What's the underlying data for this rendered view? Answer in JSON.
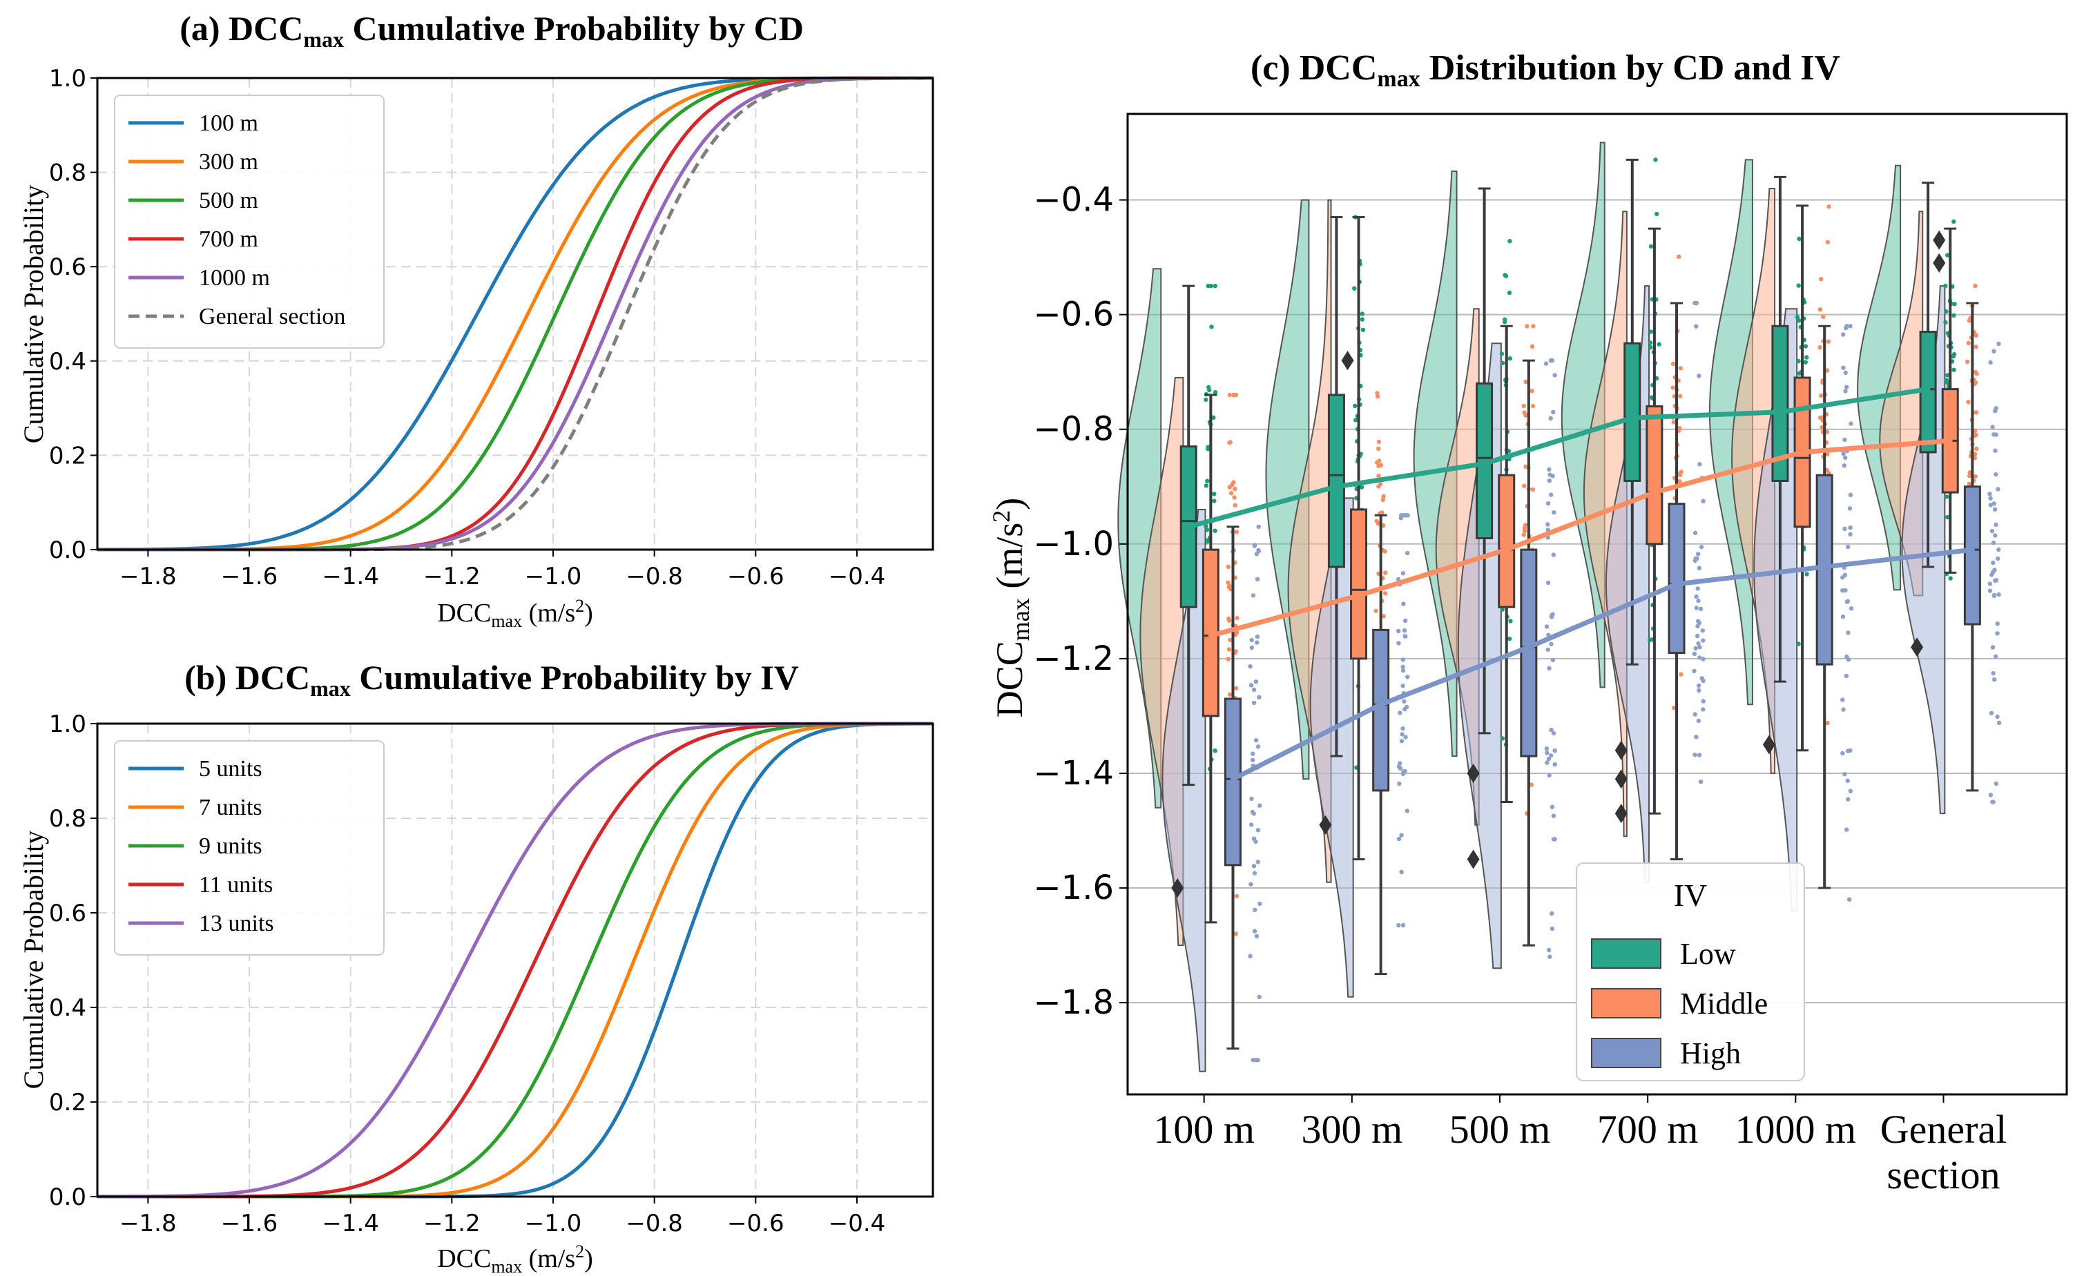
{
  "chart_data": [
    {
      "id": "a",
      "type": "line",
      "title": {
        "prefix": "(a) DCC",
        "sub": "max",
        "suffix": " Cumulative Probability by CD"
      },
      "xlabel": {
        "main": "DCC",
        "sub": "max",
        "unit": " (m/s",
        "sup": "2",
        "close": ")"
      },
      "ylabel": "Cumulative Probability",
      "xlim": [
        -1.9,
        -0.25
      ],
      "ylim": [
        0,
        1
      ],
      "xticks": [
        -1.8,
        -1.6,
        -1.4,
        -1.2,
        -1.0,
        -0.8,
        -0.6,
        -0.4
      ],
      "xtick_labels": [
        "−1.8",
        "−1.6",
        "−1.4",
        "−1.2",
        "−1.0",
        "−0.8",
        "−0.6",
        "−0.4"
      ],
      "yticks": [
        0,
        0.2,
        0.4,
        0.6,
        0.8,
        1.0
      ],
      "ytick_labels": [
        "0.0",
        "0.2",
        "0.4",
        "0.6",
        "0.8",
        "1.0"
      ],
      "grid": true,
      "legend_position": "top-left",
      "series": [
        {
          "name": "100 m",
          "color": "#1f77b4",
          "dash": false,
          "mu": -1.15,
          "sigma": 0.2
        },
        {
          "name": "300 m",
          "color": "#ff7f0e",
          "dash": false,
          "mu": -1.05,
          "sigma": 0.185
        },
        {
          "name": "500 m",
          "color": "#2ca02c",
          "dash": false,
          "mu": -0.995,
          "sigma": 0.17
        },
        {
          "name": "700 m",
          "color": "#d62728",
          "dash": false,
          "mu": -0.915,
          "sigma": 0.15
        },
        {
          "name": "1000 m",
          "color": "#9467bd",
          "dash": false,
          "mu": -0.88,
          "sigma": 0.16
        },
        {
          "name": "General section",
          "color": "#7f7f7f",
          "dash": true,
          "mu": -0.855,
          "sigma": 0.155
        }
      ]
    },
    {
      "id": "b",
      "type": "line",
      "title": {
        "prefix": "(b) DCC",
        "sub": "max",
        "suffix": " Cumulative Probability by IV"
      },
      "xlabel": {
        "main": "DCC",
        "sub": "max",
        "unit": " (m/s",
        "sup": "2",
        "close": ")"
      },
      "ylabel": "Cumulative Probability",
      "xlim": [
        -1.9,
        -0.25
      ],
      "ylim": [
        0,
        1
      ],
      "xticks": [
        -1.8,
        -1.6,
        -1.4,
        -1.2,
        -1.0,
        -0.8,
        -0.6,
        -0.4
      ],
      "xtick_labels": [
        "−1.8",
        "−1.6",
        "−1.4",
        "−1.2",
        "−1.0",
        "−0.8",
        "−0.6",
        "−0.4"
      ],
      "yticks": [
        0,
        0.2,
        0.4,
        0.6,
        0.8,
        1.0
      ],
      "ytick_labels": [
        "0.0",
        "0.2",
        "0.4",
        "0.6",
        "0.8",
        "1.0"
      ],
      "grid": true,
      "legend_position": "top-left",
      "series": [
        {
          "name": "5 units",
          "color": "#1f77b4",
          "dash": false,
          "mu": -0.75,
          "sigma": 0.13
        },
        {
          "name": "7 units",
          "color": "#ff7f0e",
          "dash": false,
          "mu": -0.84,
          "sigma": 0.15
        },
        {
          "name": "9 units",
          "color": "#2ca02c",
          "dash": false,
          "mu": -0.925,
          "sigma": 0.16
        },
        {
          "name": "11 units",
          "color": "#d62728",
          "dash": false,
          "mu": -1.035,
          "sigma": 0.175
        },
        {
          "name": "13 units",
          "color": "#9467bd",
          "dash": false,
          "mu": -1.17,
          "sigma": 0.19
        }
      ]
    },
    {
      "id": "c",
      "type": "box",
      "title": {
        "prefix": "(c) DCC",
        "sub": "max",
        "suffix": " Distribution by CD and IV"
      },
      "ylabel": {
        "main": "DCC",
        "sub": "max",
        "unit": " (m/s",
        "sup": "2",
        "close": ")"
      },
      "ylim": [
        -1.96,
        -0.25
      ],
      "yticks": [
        -1.8,
        -1.6,
        -1.4,
        -1.2,
        -1.0,
        -0.8,
        -0.6,
        -0.4
      ],
      "ytick_labels": [
        "−1.8",
        "−1.6",
        "−1.4",
        "−1.2",
        "−1.0",
        "−0.8",
        "−0.6",
        "−0.4"
      ],
      "categories": [
        "100 m",
        "300 m",
        "500 m",
        "700 m",
        "1000 m",
        "General section"
      ],
      "category_lines": [
        [
          "100 m"
        ],
        [
          "300 m"
        ],
        [
          "500 m"
        ],
        [
          "700 m"
        ],
        [
          "1000 m"
        ],
        [
          "General",
          "section"
        ]
      ],
      "legend_title": "IV",
      "legend_position": "bottom-center",
      "groups": [
        {
          "name": "Low",
          "color": "#1b9e77",
          "fill": "#2ba58a",
          "light": "#66c2a5",
          "means": [
            -0.97,
            -0.9,
            -0.86,
            -0.78,
            -0.77,
            -0.73
          ],
          "boxes": [
            {
              "q1": -1.11,
              "q3": -0.83,
              "med": -0.96,
              "lo": -1.42,
              "hi": -0.55,
              "out": [
                -1.6
              ]
            },
            {
              "q1": -1.04,
              "q3": -0.74,
              "med": -0.88,
              "lo": -1.37,
              "hi": -0.43,
              "out": [
                -1.49
              ]
            },
            {
              "q1": -0.99,
              "q3": -0.72,
              "med": -0.85,
              "lo": -1.33,
              "hi": -0.38,
              "out": [
                -1.4,
                -1.55
              ]
            },
            {
              "q1": -0.89,
              "q3": -0.65,
              "med": -0.78,
              "lo": -1.21,
              "hi": -0.33,
              "out": [
                -1.36,
                -1.41,
                -1.47
              ]
            },
            {
              "q1": -0.89,
              "q3": -0.62,
              "med": -0.77,
              "lo": -1.24,
              "hi": -0.36,
              "out": [
                -1.35
              ]
            },
            {
              "q1": -0.84,
              "q3": -0.63,
              "med": -0.73,
              "lo": -1.04,
              "hi": -0.37,
              "out": [
                -1.18
              ]
            }
          ]
        },
        {
          "name": "Middle",
          "color": "#fc8d62",
          "fill": "#fc8d62",
          "light": "#fdb596",
          "means": [
            -1.16,
            -1.09,
            -1.01,
            -0.91,
            -0.84,
            -0.82
          ],
          "boxes": [
            {
              "q1": -1.3,
              "q3": -1.01,
              "med": -1.16,
              "lo": -1.66,
              "hi": -0.74,
              "out": []
            },
            {
              "q1": -1.2,
              "q3": -0.94,
              "med": -1.08,
              "lo": -1.55,
              "hi": -0.43,
              "out": [
                -0.68
              ]
            },
            {
              "q1": -1.11,
              "q3": -0.88,
              "med": -1.01,
              "lo": -1.45,
              "hi": -0.62,
              "out": []
            },
            {
              "q1": -1.0,
              "q3": -0.76,
              "med": -0.91,
              "lo": -1.47,
              "hi": -0.45,
              "out": []
            },
            {
              "q1": -0.97,
              "q3": -0.71,
              "med": -0.85,
              "lo": -1.36,
              "hi": -0.41,
              "out": []
            },
            {
              "q1": -0.91,
              "q3": -0.73,
              "med": -0.82,
              "lo": -1.05,
              "hi": -0.45,
              "out": [
                -0.47,
                -0.51
              ]
            }
          ]
        },
        {
          "name": "High",
          "color": "#8da0cb",
          "fill": "#7b93c6",
          "light": "#aab8da",
          "means": [
            -1.41,
            -1.28,
            -1.18,
            -1.07,
            -1.04,
            -1.01
          ],
          "boxes": [
            {
              "q1": -1.56,
              "q3": -1.27,
              "med": -1.41,
              "lo": -1.88,
              "hi": -0.97,
              "out": []
            },
            {
              "q1": -1.43,
              "q3": -1.15,
              "med": -1.28,
              "lo": -1.75,
              "hi": -0.95,
              "out": []
            },
            {
              "q1": -1.37,
              "q3": -1.01,
              "med": -1.18,
              "lo": -1.7,
              "hi": -0.68,
              "out": []
            },
            {
              "q1": -1.19,
              "q3": -0.93,
              "med": -1.07,
              "lo": -1.55,
              "hi": -0.58,
              "out": []
            },
            {
              "q1": -1.21,
              "q3": -0.88,
              "med": -1.04,
              "lo": -1.6,
              "hi": -0.62,
              "out": []
            },
            {
              "q1": -1.14,
              "q3": -0.9,
              "med": -1.01,
              "lo": -1.43,
              "hi": -0.58,
              "out": []
            }
          ]
        }
      ]
    }
  ]
}
